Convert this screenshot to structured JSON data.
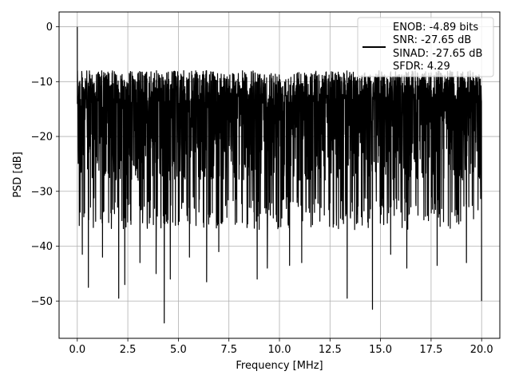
{
  "chart_data": {
    "type": "line",
    "xlabel": "Frequency [MHz]",
    "ylabel": "PSD [dB]",
    "xlim": [
      -0.9,
      20.9
    ],
    "ylim": [
      -56.8,
      2.7
    ],
    "xticks": [
      0.0,
      2.5,
      5.0,
      7.5,
      10.0,
      12.5,
      15.0,
      17.5,
      20.0
    ],
    "xtick_labels": [
      "0.0",
      "2.5",
      "5.0",
      "7.5",
      "10.0",
      "12.5",
      "15.0",
      "17.5",
      "20.0"
    ],
    "yticks": [
      0,
      -10,
      -20,
      -30,
      -40,
      -50
    ],
    "ytick_labels": [
      "0",
      "−10",
      "−20",
      "−30",
      "−40",
      "−50"
    ],
    "grid": true,
    "legend_position": "top-right",
    "series": [
      {
        "name": "ENOB: -4.89 bits\nSNR: -27.65 dB\nSINAD: -27.65 dB\nSFDR: 4.29",
        "color": "#000000",
        "envelope": {
          "x_range": [
            0.0,
            20.0
          ],
          "peak": {
            "x": 0.0,
            "y": 0.0
          },
          "upper_typical": -9.5,
          "center_typical": -20.0,
          "lower_typical": -31.0,
          "deep_nulls": [
            {
              "x": 0.25,
              "y": -41.5
            },
            {
              "x": 0.55,
              "y": -47.5
            },
            {
              "x": 1.25,
              "y": -42.0
            },
            {
              "x": 2.05,
              "y": -49.5
            },
            {
              "x": 2.35,
              "y": -47.0
            },
            {
              "x": 3.1,
              "y": -43.0
            },
            {
              "x": 3.9,
              "y": -45.0
            },
            {
              "x": 4.3,
              "y": -54.0
            },
            {
              "x": 4.6,
              "y": -46.0
            },
            {
              "x": 5.55,
              "y": -42.0
            },
            {
              "x": 6.4,
              "y": -46.5
            },
            {
              "x": 7.0,
              "y": -41.0
            },
            {
              "x": 8.9,
              "y": -46.0
            },
            {
              "x": 9.4,
              "y": -44.0
            },
            {
              "x": 10.5,
              "y": -43.5
            },
            {
              "x": 11.1,
              "y": -43.0
            },
            {
              "x": 13.35,
              "y": -49.5
            },
            {
              "x": 14.6,
              "y": -51.5
            },
            {
              "x": 15.5,
              "y": -41.5
            },
            {
              "x": 16.3,
              "y": -44.0
            },
            {
              "x": 17.8,
              "y": -43.5
            },
            {
              "x": 19.25,
              "y": -43.0
            },
            {
              "x": 20.0,
              "y": -50.0
            }
          ]
        }
      }
    ]
  },
  "legend": {
    "lines": [
      "ENOB: -4.89 bits",
      "SNR: -27.65 dB",
      "SINAD: -27.65 dB",
      "SFDR: 4.29"
    ],
    "line_color": "#000000"
  }
}
